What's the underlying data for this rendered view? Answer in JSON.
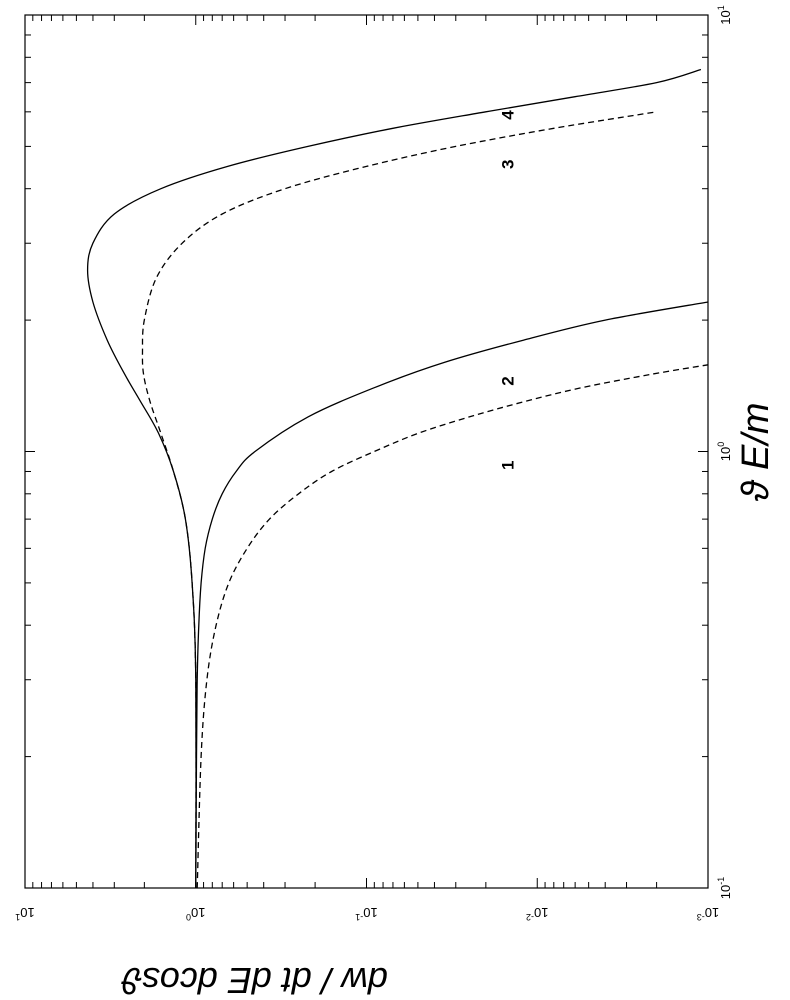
{
  "chart_data": {
    "type": "line",
    "title": "",
    "xlabel": "ϑ E/m",
    "ylabel": "dw / dt dE dcosϑ",
    "x_scale": "log",
    "y_scale": "log",
    "xlim": [
      0.1,
      10
    ],
    "ylim": [
      0.001,
      10
    ],
    "grid": false,
    "x_ticks": [
      {
        "value": 0.1,
        "base": "10",
        "exp": "-1"
      },
      {
        "value": 1,
        "base": "10",
        "exp": "0"
      },
      {
        "value": 10,
        "base": "10",
        "exp": "1"
      }
    ],
    "y_ticks": [
      {
        "value": 10,
        "base": "10",
        "exp": "1"
      },
      {
        "value": 1,
        "base": "10",
        "exp": "0"
      },
      {
        "value": 0.1,
        "base": "10",
        "exp": "-1"
      },
      {
        "value": 0.01,
        "base": "10",
        "exp": "-2"
      },
      {
        "value": 0.001,
        "base": "10",
        "exp": "-3"
      }
    ],
    "series": [
      {
        "label": "1",
        "style": "dashed",
        "x": [
          0.1,
          0.2,
          0.3,
          0.4,
          0.5,
          0.6,
          0.7,
          0.8,
          0.9,
          1.0,
          1.1,
          1.2,
          1.3,
          1.4,
          1.5,
          1.58
        ],
        "y": [
          0.98,
          0.93,
          0.86,
          0.76,
          0.64,
          0.5,
          0.37,
          0.25,
          0.16,
          0.09,
          0.05,
          0.025,
          0.012,
          0.0055,
          0.0022,
          0.001
        ]
      },
      {
        "label": "2",
        "style": "solid",
        "x": [
          0.1,
          0.2,
          0.3,
          0.4,
          0.5,
          0.6,
          0.7,
          0.8,
          0.9,
          1.0,
          1.2,
          1.4,
          1.6,
          1.8,
          2.0,
          2.2
        ],
        "y": [
          1.0,
          0.99,
          0.98,
          0.96,
          0.93,
          0.88,
          0.8,
          0.7,
          0.58,
          0.45,
          0.22,
          0.09,
          0.035,
          0.012,
          0.004,
          0.001
        ]
      },
      {
        "label": "3",
        "style": "dashed",
        "x": [
          0.1,
          0.3,
          0.5,
          0.7,
          0.9,
          1.1,
          1.3,
          1.5,
          1.7,
          2.0,
          2.5,
          3.0,
          3.5,
          4.0,
          4.5,
          5.0,
          5.5,
          6.0
        ],
        "y": [
          1.0,
          1.0,
          1.05,
          1.15,
          1.35,
          1.6,
          1.85,
          2.02,
          2.05,
          2.0,
          1.7,
          1.2,
          0.7,
          0.3,
          0.1,
          0.03,
          0.008,
          0.002
        ]
      },
      {
        "label": "4",
        "style": "solid",
        "x": [
          0.1,
          0.3,
          0.5,
          0.7,
          0.9,
          1.1,
          1.3,
          1.5,
          1.8,
          2.2,
          2.6,
          3.0,
          3.5,
          4.0,
          4.5,
          5.0,
          5.5,
          6.0,
          6.5,
          7.0,
          7.5
        ],
        "y": [
          1.0,
          1.0,
          1.05,
          1.15,
          1.35,
          1.65,
          2.1,
          2.6,
          3.3,
          4.0,
          4.3,
          4.0,
          3.0,
          1.6,
          0.65,
          0.22,
          0.07,
          0.02,
          0.006,
          0.002,
          0.0011
        ]
      }
    ],
    "annotations": [
      {
        "text": "1",
        "x": 0.93,
        "y": 0.0138
      },
      {
        "text": "2",
        "x": 1.45,
        "y": 0.0138
      },
      {
        "text": "3",
        "x": 4.55,
        "y": 0.0138
      },
      {
        "text": "4",
        "x": 5.9,
        "y": 0.0138
      }
    ]
  }
}
